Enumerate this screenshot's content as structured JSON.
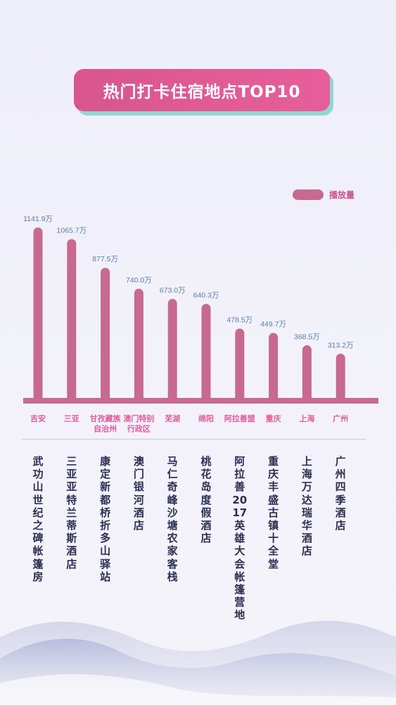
{
  "title": "热门打卡住宿地点TOP10",
  "legend": {
    "label": "播放量",
    "color": "#c8698f"
  },
  "colors": {
    "bar": "#c8698f",
    "baseline": "#c8698f",
    "value_label": "#5d7ca6",
    "category_label": "#e05c9c",
    "title_background": "#e05c9c",
    "title_shadow": "#8fd7d2"
  },
  "chart_data": {
    "type": "bar",
    "title": "热门打卡住宿地点TOP10",
    "categories": [
      "吉安",
      "三亚",
      "甘孜藏族自治州",
      "澳门特别行政区",
      "芜湖",
      "绵阳",
      "阿拉善盟",
      "重庆",
      "上海",
      "广州"
    ],
    "category_lines": [
      [
        "吉安"
      ],
      [
        "三亚"
      ],
      [
        "甘孜藏族",
        "自治州"
      ],
      [
        "澳门特别",
        "行政区"
      ],
      [
        "芜湖"
      ],
      [
        "绵阳"
      ],
      [
        "阿拉善盟"
      ],
      [
        "重庆"
      ],
      [
        "上海"
      ],
      [
        "广州"
      ]
    ],
    "values": [
      1141.9,
      1065.7,
      877.5,
      740.0,
      673.0,
      640.3,
      478.5,
      449.7,
      368.5,
      313.2
    ],
    "value_labels": [
      "1141.9万",
      "1065.7万",
      "877.5万",
      "740.0万",
      "673.0万",
      "640.3万",
      "478.5万",
      "449.7万",
      "368.5万",
      "313.2万"
    ],
    "series": [
      {
        "name": "播放量",
        "values": [
          1141.9,
          1065.7,
          877.5,
          740.0,
          673.0,
          640.3,
          478.5,
          449.7,
          368.5,
          313.2
        ]
      }
    ],
    "hotels": [
      "武功山世纪之碑帐篷房",
      "三亚亚特兰蒂斯酒店",
      "康定新都桥折多山驿站",
      "澳门银河酒店",
      "马仁奇峰沙塘农家客栈",
      "桃花岛度假酒店",
      "阿拉善2017英雄大会帐篷营地",
      "重庆丰盛古镇十全堂",
      "上海万达瑞华酒店",
      "广州四季酒店"
    ],
    "unit": "万",
    "ylim": [
      0,
      1141.9
    ],
    "grid": false,
    "legend_position": "top-right",
    "xlabel": "",
    "ylabel": ""
  }
}
